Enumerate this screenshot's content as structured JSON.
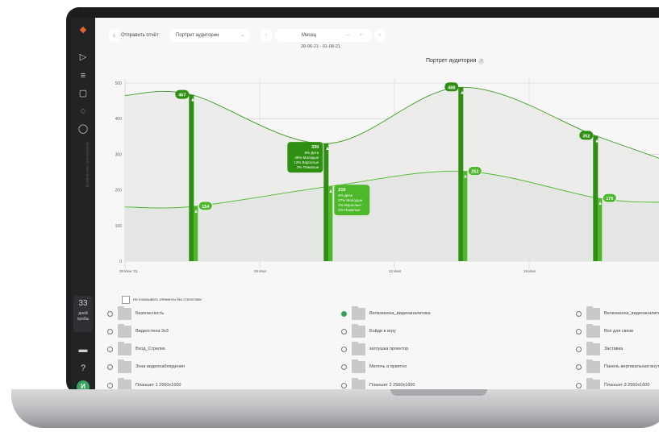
{
  "toolbar": {
    "send_report": "Отправить отчёт",
    "report_type": "Портрет аудитории",
    "period": "Месяц",
    "date_range": "28-06-21 - 01-08-21"
  },
  "sidebar": {
    "trial_days": "33",
    "trial_label": "дней пробы",
    "avatar": "И"
  },
  "colors": {
    "dark_green": "#2f8f12",
    "light_green": "#4cb82a",
    "accent": "#3aa360"
  },
  "chart_data": {
    "type": "line+bar",
    "title": "Портрет аудитории",
    "ylabel": "Количество просмотров",
    "ylim": [
      0,
      500
    ],
    "yticks": [
      "0",
      "100",
      "200",
      "300",
      "400",
      "500"
    ],
    "xticks": [
      "28 Июн '21",
      "05 Июл",
      "12 Июл",
      "19 Июл"
    ],
    "grid": true,
    "series": [
      {
        "values": [
          467,
          330,
          488,
          352
        ]
      },
      {
        "values": [
          154,
          210,
          252,
          176
        ]
      }
    ],
    "tooltips": [
      {
        "value": "330",
        "lines": [
          "8% Дети",
          "36% Молодые",
          "12% Взрослые",
          "3% Пожилые"
        ]
      },
      {
        "value": "210",
        "lines": [
          "9% Дети",
          "27% Молодые",
          "2% Взрослые",
          "2% Пожилые"
        ]
      }
    ]
  },
  "filter": {
    "hide_empty": "Не показывать элементы без статистики"
  },
  "items": [
    {
      "label": "Безопасность",
      "checked": false
    },
    {
      "label": "Велкомзона_видеоаналитика",
      "checked": true
    },
    {
      "label": "Велкомзона_видеоаналитика",
      "checked": false
    },
    {
      "label": "Видеостена 3x3",
      "checked": false
    },
    {
      "label": "Бойди в игру",
      "checked": false
    },
    {
      "label": "Все для связи",
      "checked": false
    },
    {
      "label": "Вход_Стрелки",
      "checked": false
    },
    {
      "label": "заглушка проектор",
      "checked": false
    },
    {
      "label": "Заставка",
      "checked": false
    },
    {
      "label": "Зона видеонаблюдения",
      "checked": false
    },
    {
      "label": "Мелочь а приятно",
      "checked": false
    },
    {
      "label": "Панель вертикальная внутр",
      "checked": false
    },
    {
      "label": "Планшет 1 2560x1600",
      "checked": false
    },
    {
      "label": "Планшет 2 2560x1600",
      "checked": false
    },
    {
      "label": "Планшет 3 2560x1600",
      "checked": false
    }
  ]
}
